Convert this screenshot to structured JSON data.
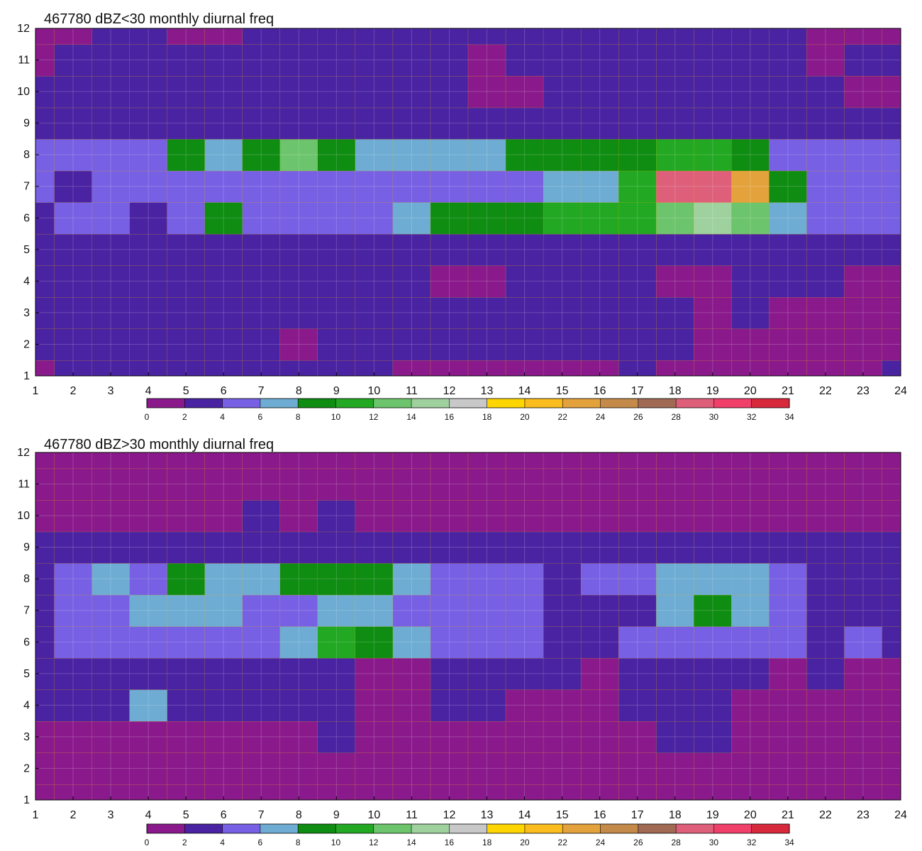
{
  "chart_data": [
    {
      "type": "heatmap",
      "title": "467780 dBZ<30 monthly diurnal freq",
      "x": [
        1,
        2,
        3,
        4,
        5,
        6,
        7,
        8,
        9,
        10,
        11,
        12,
        13,
        14,
        15,
        16,
        17,
        18,
        19,
        20,
        21,
        22,
        23,
        24
      ],
      "y": [
        1,
        2,
        3,
        4,
        5,
        6,
        7,
        8,
        9,
        10,
        11,
        12
      ],
      "xlim": [
        1,
        24
      ],
      "ylim": [
        1,
        12
      ],
      "x_ticks": [
        "1",
        "2",
        "3",
        "4",
        "5",
        "6",
        "7",
        "8",
        "9",
        "10",
        "11",
        "12",
        "13",
        "14",
        "15",
        "16",
        "17",
        "18",
        "19",
        "20",
        "21",
        "22",
        "23",
        "24"
      ],
      "y_ticks": [
        "1",
        "2",
        "3",
        "4",
        "5",
        "6",
        "7",
        "8",
        "9",
        "10",
        "11",
        "12"
      ],
      "grid": true,
      "values": [
        [
          1,
          2,
          2,
          2,
          2,
          2,
          2,
          2,
          2,
          2,
          1,
          1,
          1,
          1,
          1,
          1,
          2,
          1,
          1,
          1,
          1,
          1,
          1,
          2
        ],
        [
          2,
          2,
          2,
          2,
          2,
          3,
          2,
          1,
          2,
          2,
          2,
          2,
          2,
          2,
          2,
          2,
          2,
          2,
          1,
          1,
          1,
          1,
          1,
          1
        ],
        [
          2,
          2,
          2,
          2,
          2,
          2,
          2,
          2,
          2,
          2,
          2,
          2,
          2,
          2,
          2,
          2,
          2,
          2,
          1,
          2,
          1,
          1,
          1,
          1
        ],
        [
          2,
          2,
          2,
          2,
          2,
          2,
          2,
          2,
          2,
          2,
          2,
          1,
          1,
          2,
          2,
          3,
          2,
          1,
          1,
          2,
          2,
          2,
          1,
          1
        ],
        [
          2,
          2,
          3,
          3,
          3,
          3,
          3,
          3,
          3,
          3,
          3,
          3,
          3,
          3,
          3,
          3,
          3,
          3,
          3,
          3,
          3,
          3,
          2,
          2
        ],
        [
          3,
          4,
          4,
          3,
          5,
          8,
          5,
          5,
          5,
          4,
          7,
          8,
          9,
          8,
          10,
          10,
          11,
          13,
          15,
          12,
          7,
          5,
          4,
          4
        ],
        [
          4,
          2,
          4,
          4,
          5,
          5,
          5,
          5,
          5,
          4,
          5,
          4,
          5,
          5,
          6,
          7,
          11,
          28,
          29,
          23,
          8,
          5,
          4,
          5
        ],
        [
          4,
          4,
          5,
          5,
          9,
          6,
          9,
          13,
          9,
          7,
          7,
          7,
          7,
          8,
          8,
          8,
          8,
          10,
          10,
          9,
          5,
          5,
          5,
          5
        ],
        [
          3,
          3,
          3,
          3,
          3,
          3,
          3,
          3,
          3,
          3,
          3,
          3,
          3,
          3,
          3,
          3,
          3,
          3,
          3,
          3,
          3,
          3,
          3,
          3
        ],
        [
          2,
          2,
          2,
          2,
          2,
          2,
          2,
          2,
          2,
          2,
          2,
          2,
          1,
          1,
          3,
          3,
          3,
          2,
          2,
          2,
          2,
          2,
          1,
          1
        ],
        [
          1,
          2,
          2,
          2,
          2,
          2,
          3,
          2,
          2,
          2,
          2,
          2,
          1,
          2,
          3,
          3,
          3,
          2,
          2,
          2,
          2,
          1,
          2,
          2
        ],
        [
          1,
          1,
          2,
          2,
          1,
          1,
          2,
          2,
          2,
          2,
          2,
          2,
          2,
          2,
          2,
          3,
          3,
          2,
          2,
          2,
          2,
          1,
          1,
          1
        ]
      ]
    },
    {
      "type": "heatmap",
      "title": "467780 dBZ>30 monthly diurnal freq",
      "x": [
        1,
        2,
        3,
        4,
        5,
        6,
        7,
        8,
        9,
        10,
        11,
        12,
        13,
        14,
        15,
        16,
        17,
        18,
        19,
        20,
        21,
        22,
        23,
        24
      ],
      "y": [
        1,
        2,
        3,
        4,
        5,
        6,
        7,
        8,
        9,
        10,
        11,
        12
      ],
      "xlim": [
        1,
        24
      ],
      "ylim": [
        1,
        12
      ],
      "x_ticks": [
        "1",
        "2",
        "3",
        "4",
        "5",
        "6",
        "7",
        "8",
        "9",
        "10",
        "11",
        "12",
        "13",
        "14",
        "15",
        "16",
        "17",
        "18",
        "19",
        "20",
        "21",
        "22",
        "23",
        "24"
      ],
      "y_ticks": [
        "1",
        "2",
        "3",
        "4",
        "5",
        "6",
        "7",
        "8",
        "9",
        "10",
        "11",
        "12"
      ],
      "grid": true,
      "values": [
        [
          1,
          1,
          1,
          1,
          1,
          1,
          1,
          1,
          1,
          1,
          1,
          1,
          1,
          1,
          1,
          1,
          1,
          1,
          1,
          1,
          1,
          1,
          1,
          1
        ],
        [
          1,
          1,
          1,
          1,
          1,
          1,
          1,
          1,
          1,
          1,
          1,
          1,
          1,
          1,
          1,
          1,
          1,
          1,
          1,
          1,
          1,
          1,
          1,
          1
        ],
        [
          1,
          1,
          1,
          1,
          1,
          1,
          1,
          1,
          2,
          1,
          1,
          1,
          1,
          1,
          1,
          1,
          1,
          2,
          2,
          1,
          1,
          1,
          1,
          1
        ],
        [
          2,
          3,
          2,
          7,
          2,
          2,
          2,
          2,
          2,
          1,
          1,
          2,
          2,
          1,
          1,
          1,
          2,
          2,
          2,
          1,
          1,
          1,
          1,
          1
        ],
        [
          2,
          2,
          2,
          2,
          2,
          2,
          2,
          2,
          2,
          1,
          1,
          2,
          3,
          3,
          2,
          1,
          2,
          2,
          2,
          2,
          1,
          2,
          1,
          1
        ],
        [
          3,
          4,
          4,
          5,
          4,
          4,
          4,
          7,
          10,
          9,
          7,
          4,
          4,
          4,
          3,
          3,
          4,
          5,
          5,
          5,
          4,
          3,
          5,
          3
        ],
        [
          3,
          4,
          5,
          6,
          6,
          6,
          4,
          5,
          6,
          6,
          5,
          4,
          4,
          4,
          3,
          3,
          3,
          6,
          9,
          6,
          4,
          3,
          3,
          3
        ],
        [
          3,
          4,
          6,
          5,
          8,
          6,
          6,
          8,
          8,
          9,
          7,
          5,
          4,
          4,
          3,
          4,
          4,
          6,
          6,
          6,
          4,
          3,
          2,
          2
        ],
        [
          2,
          2,
          3,
          3,
          3,
          3,
          3,
          3,
          3,
          3,
          3,
          3,
          3,
          3,
          3,
          3,
          3,
          3,
          3,
          3,
          3,
          3,
          2,
          2
        ],
        [
          1,
          1,
          1,
          1,
          1,
          1,
          2,
          1,
          2,
          1,
          1,
          1,
          1,
          1,
          1,
          1,
          1,
          1,
          1,
          1,
          1,
          1,
          1,
          1
        ],
        [
          1,
          1,
          1,
          1,
          1,
          1,
          1,
          1,
          1,
          1,
          1,
          1,
          1,
          1,
          1,
          1,
          1,
          1,
          1,
          1,
          1,
          1,
          1,
          1
        ],
        [
          1,
          1,
          1,
          1,
          1,
          1,
          1,
          1,
          1,
          1,
          1,
          1,
          1,
          1,
          1,
          1,
          1,
          1,
          1,
          1,
          1,
          1,
          1,
          1
        ]
      ]
    }
  ],
  "colorbar": {
    "levels": [
      0,
      2,
      4,
      6,
      8,
      10,
      12,
      14,
      16,
      18,
      20,
      22,
      24,
      26,
      28,
      30,
      32,
      34
    ],
    "tick_labels": [
      "0",
      "2",
      "4",
      "6",
      "8",
      "10",
      "12",
      "14",
      "16",
      "18",
      "20",
      "22",
      "24",
      "26",
      "28",
      "30",
      "32",
      "34"
    ],
    "colors": [
      "#8a1a8c",
      "#4a23a2",
      "#7760e3",
      "#6eacd3",
      "#0f8c12",
      "#22a822",
      "#6cc46c",
      "#9fd19f",
      "#c8c8c8",
      "#ffd500",
      "#fbbd1d",
      "#e4a23d",
      "#c48a4a",
      "#a06a55",
      "#de5f7a",
      "#f0406a",
      "#d8283c"
    ],
    "contour_color": "#f5b800"
  }
}
